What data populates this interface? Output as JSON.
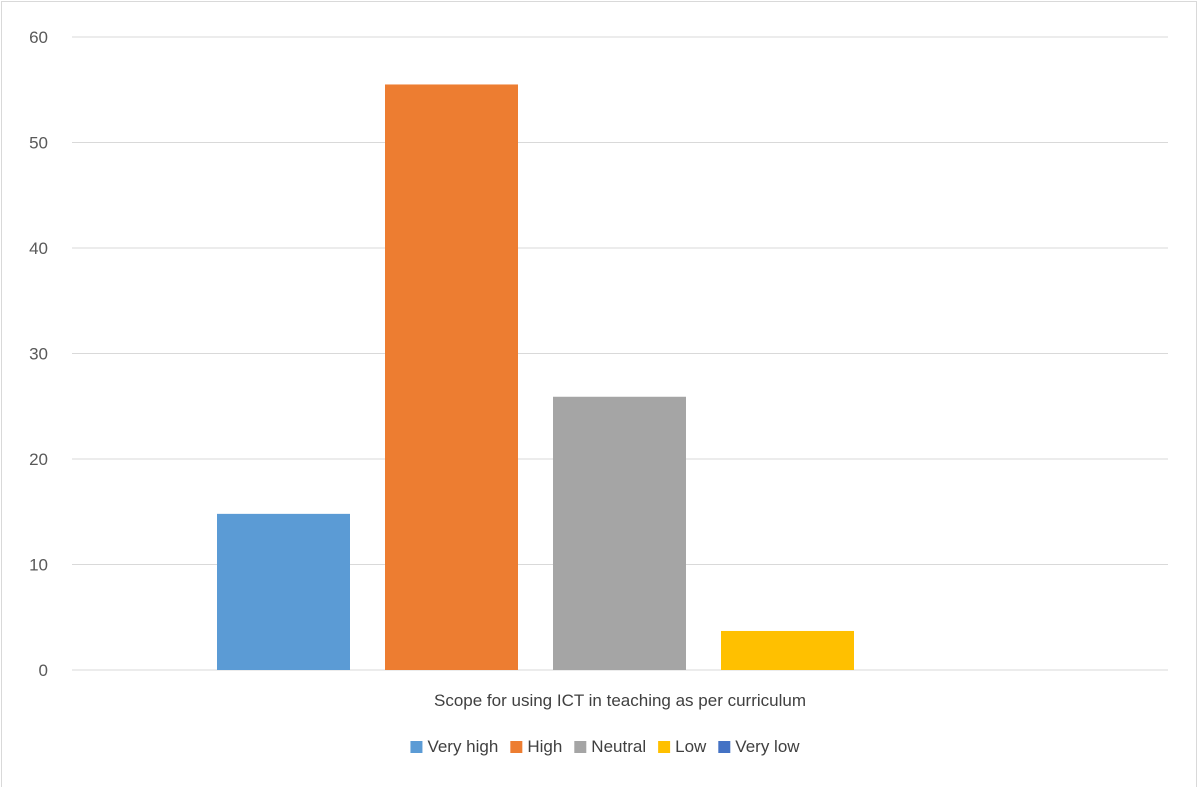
{
  "chart_data": {
    "type": "bar",
    "xlabel": "Scope for using ICT in teaching as per curriculum",
    "ylabel": "",
    "ylim": [
      0,
      60
    ],
    "yticks": [
      0,
      10,
      20,
      30,
      40,
      50,
      60
    ],
    "grid": true,
    "legend_position": "bottom",
    "series": [
      {
        "name": "Very high",
        "value": 14.8,
        "color": "#5b9bd5"
      },
      {
        "name": "High",
        "value": 55.5,
        "color": "#ed7d31"
      },
      {
        "name": "Neutral",
        "value": 25.9,
        "color": "#a5a5a5"
      },
      {
        "name": "Low",
        "value": 3.7,
        "color": "#ffc000"
      },
      {
        "name": "Very low",
        "value": 0,
        "color": "#4472c4"
      }
    ]
  }
}
